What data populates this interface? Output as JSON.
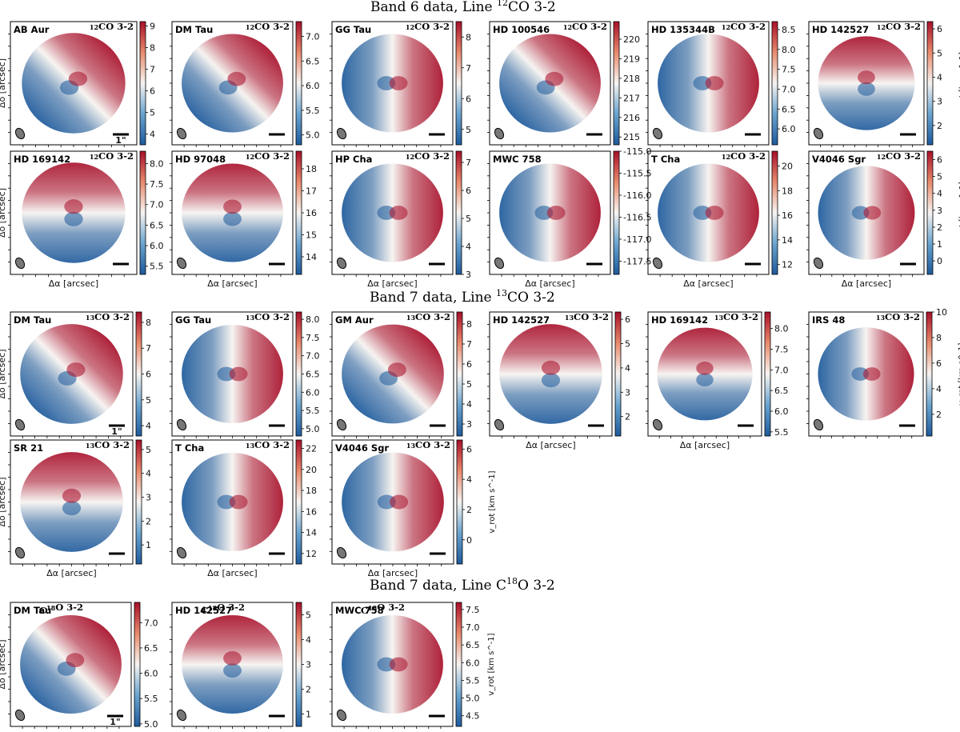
{
  "sections": [
    {
      "id": "s1",
      "title_main": "Band 6 data, Line ",
      "title_sup": "12",
      "title_tail": "CO 3-2"
    },
    {
      "id": "s2",
      "title_main": "Band 7 data, Line ",
      "title_sup": "13",
      "title_tail": "CO 3-2"
    },
    {
      "id": "s3",
      "title_main": "Band 7 data, Line C",
      "title_sup": "18",
      "title_tail": "O 3-2"
    }
  ],
  "axis_labels": {
    "x": "Δα [arcsec]",
    "y": "Δδ [arcsec]",
    "cbar": "v_rot [km s^-1]"
  },
  "colors": {
    "blue": "#1d5a9c",
    "white": "#f7f4f1",
    "red": "#a8102a"
  },
  "chart_data": [
    {
      "type": "heatmap",
      "section": "s1",
      "source": "AB Aur",
      "iso": "12",
      "mol": "CO 3-2",
      "ticks": [
        "9",
        "8",
        "7",
        "6",
        "5",
        "4"
      ],
      "range": [
        3.5,
        9.2
      ],
      "beam_label": "1\"",
      "show_xlabel": false,
      "show_ylabel": true,
      "show_cbar_label": false,
      "orient": "diag"
    },
    {
      "type": "heatmap",
      "section": "s1",
      "source": "DM Tau",
      "iso": "12",
      "mol": "CO 3-2",
      "ticks": [
        "7.0",
        "6.5",
        "6.0",
        "5.5",
        "5.0"
      ],
      "range": [
        4.8,
        7.3
      ],
      "show_xlabel": false,
      "show_ylabel": false,
      "show_cbar_label": false,
      "orient": "diag"
    },
    {
      "type": "heatmap",
      "section": "s1",
      "source": "GG Tau",
      "iso": "12",
      "mol": "CO 3-2",
      "ticks": [
        "8",
        "7",
        "6",
        "5"
      ],
      "range": [
        4.5,
        8.5
      ],
      "show_xlabel": false,
      "show_ylabel": false,
      "show_cbar_label": false,
      "orient": "lr"
    },
    {
      "type": "heatmap",
      "section": "s1",
      "source": "HD 100546",
      "iso": "12",
      "mol": "CO 3-2",
      "ticks": [
        "220",
        "219",
        "218",
        "217",
        "216",
        "215"
      ],
      "range": [
        214.6,
        220.9
      ],
      "show_xlabel": false,
      "show_ylabel": false,
      "show_cbar_label": false,
      "orient": "diag"
    },
    {
      "type": "heatmap",
      "section": "s1",
      "source": "HD 135344B",
      "iso": "12",
      "mol": "CO 3-2",
      "ticks": [
        "8.5",
        "8.0",
        "7.5",
        "7.0",
        "6.5",
        "6.0"
      ],
      "range": [
        5.6,
        8.7
      ],
      "show_xlabel": false,
      "show_ylabel": false,
      "show_cbar_label": false,
      "orient": "lr"
    },
    {
      "type": "heatmap",
      "section": "s1",
      "source": "HD 142527",
      "iso": "12",
      "mol": "CO 3-2",
      "ticks": [
        "6",
        "5",
        "4",
        "3",
        "2"
      ],
      "range": [
        1.2,
        6.3
      ],
      "show_xlabel": false,
      "show_ylabel": false,
      "show_cbar_label": true,
      "orient": "tb"
    },
    {
      "type": "heatmap",
      "section": "s1",
      "source": "HD 169142",
      "iso": "12",
      "mol": "CO 3-2",
      "ticks": [
        "8.0",
        "7.5",
        "7.0",
        "6.5",
        "6.0",
        "5.5"
      ],
      "range": [
        5.3,
        8.3
      ],
      "show_xlabel": true,
      "show_ylabel": true,
      "show_cbar_label": false,
      "orient": "tb"
    },
    {
      "type": "heatmap",
      "section": "s1",
      "source": "HD 97048",
      "iso": "12",
      "mol": "CO 3-2",
      "ticks": [
        "18",
        "17",
        "16",
        "15",
        "14"
      ],
      "range": [
        13.2,
        18.8
      ],
      "show_xlabel": true,
      "show_ylabel": false,
      "show_cbar_label": false,
      "orient": "tb"
    },
    {
      "type": "heatmap",
      "section": "s1",
      "source": "HP Cha",
      "iso": "12",
      "mol": "CO 3-2",
      "ticks": [
        "7",
        "6",
        "5",
        "4",
        "3"
      ],
      "range": [
        3.0,
        7.4
      ],
      "show_xlabel": true,
      "show_ylabel": false,
      "show_cbar_label": false,
      "orient": "lr"
    },
    {
      "type": "heatmap",
      "section": "s1",
      "source": "MWC 758",
      "iso": "",
      "mol": "",
      "ticks": [
        "-115.0",
        "-115.5",
        "-116.0",
        "-116.5",
        "-117.0",
        "-117.5"
      ],
      "range": [
        -117.8,
        -115.0
      ],
      "show_xlabel": true,
      "show_ylabel": false,
      "show_cbar_label": false,
      "orient": "lr"
    },
    {
      "type": "heatmap",
      "section": "s1",
      "source": "T Cha",
      "iso": "12",
      "mol": "CO 3-2",
      "ticks": [
        "20",
        "18",
        "16",
        "14",
        "12"
      ],
      "range": [
        11.2,
        21.2
      ],
      "show_xlabel": true,
      "show_ylabel": false,
      "show_cbar_label": false,
      "orient": "lr"
    },
    {
      "type": "heatmap",
      "section": "s1",
      "source": "V4046 Sgr",
      "iso": "12",
      "mol": "CO 3-2",
      "ticks": [
        "6",
        "5",
        "4",
        "3",
        "2",
        "1",
        "0"
      ],
      "range": [
        -0.8,
        6.5
      ],
      "show_xlabel": true,
      "show_ylabel": false,
      "show_cbar_label": true,
      "orient": "lr"
    },
    {
      "type": "heatmap",
      "section": "s2",
      "source": "DM Tau",
      "iso": "13",
      "mol": "CO 3-2",
      "ticks": [
        "8",
        "7",
        "6",
        "5",
        "4"
      ],
      "range": [
        3.6,
        8.4
      ],
      "beam_label": "1\"",
      "show_xlabel": false,
      "show_ylabel": true,
      "show_cbar_label": false,
      "orient": "diag"
    },
    {
      "type": "heatmap",
      "section": "s2",
      "source": "GG Tau",
      "iso": "13",
      "mol": "CO 3-2",
      "ticks": [
        "8.0",
        "7.5",
        "7.0",
        "6.5",
        "6.0",
        "5.5",
        "5.0"
      ],
      "range": [
        4.8,
        8.2
      ],
      "show_xlabel": false,
      "show_ylabel": false,
      "show_cbar_label": false,
      "orient": "lr"
    },
    {
      "type": "heatmap",
      "section": "s2",
      "source": "GM Aur",
      "iso": "13",
      "mol": "CO 3-2",
      "ticks": [
        "8",
        "7",
        "6",
        "5",
        "4",
        "3"
      ],
      "range": [
        2.4,
        8.6
      ],
      "show_xlabel": false,
      "show_ylabel": false,
      "show_cbar_label": false,
      "orient": "diag"
    },
    {
      "type": "heatmap",
      "section": "s2",
      "source": "HD 142527",
      "iso": "13",
      "mol": "CO 3-2",
      "ticks": [
        "6",
        "5",
        "4",
        "3",
        "2"
      ],
      "range": [
        1.2,
        6.3
      ],
      "show_xlabel": true,
      "show_ylabel": false,
      "show_cbar_label": false,
      "orient": "tb"
    },
    {
      "type": "heatmap",
      "section": "s2",
      "source": "HD 169142",
      "iso": "13",
      "mol": "CO 3-2",
      "ticks": [
        "8.0",
        "7.5",
        "7.0",
        "6.5",
        "6.0",
        "5.5"
      ],
      "range": [
        5.4,
        8.4
      ],
      "show_xlabel": true,
      "show_ylabel": false,
      "show_cbar_label": false,
      "orient": "tb"
    },
    {
      "type": "heatmap",
      "section": "s2",
      "source": "IRS 48",
      "iso": "13",
      "mol": "CO 3-2",
      "ticks": [
        "10",
        "8",
        "6",
        "4",
        "2"
      ],
      "range": [
        0.3,
        10.0
      ],
      "show_xlabel": false,
      "show_ylabel": false,
      "show_cbar_label": true,
      "orient": "lr"
    },
    {
      "type": "heatmap",
      "section": "s2",
      "source": "SR 21",
      "iso": "13",
      "mol": "CO 3-2",
      "ticks": [
        "5",
        "4",
        "3",
        "2",
        "1"
      ],
      "range": [
        0.2,
        5.4
      ],
      "show_xlabel": true,
      "show_ylabel": true,
      "show_cbar_label": false,
      "orient": "tb"
    },
    {
      "type": "heatmap",
      "section": "s2",
      "source": "T Cha",
      "iso": "13",
      "mol": "CO 3-2",
      "ticks": [
        "22",
        "20",
        "18",
        "16",
        "14",
        "12"
      ],
      "range": [
        11.0,
        22.8
      ],
      "show_xlabel": true,
      "show_ylabel": false,
      "show_cbar_label": false,
      "orient": "lr"
    },
    {
      "type": "heatmap",
      "section": "s2",
      "source": "V4046 Sgr",
      "iso": "13",
      "mol": "CO 3-2",
      "ticks": [
        "6",
        "4",
        "2",
        "0"
      ],
      "range": [
        -1.6,
        6.6
      ],
      "show_xlabel": true,
      "show_ylabel": false,
      "show_cbar_label": true,
      "orient": "lr"
    },
    {
      "type": "heatmap",
      "section": "s3",
      "source": "DM Tau",
      "iso": "18",
      "mol": "O 3-2",
      "ticks": [
        "7.0",
        "6.5",
        "6.0",
        "5.5",
        "5.0"
      ],
      "range": [
        4.95,
        7.4
      ],
      "beam_label": "1\"",
      "show_xlabel": true,
      "show_ylabel": true,
      "show_cbar_label": false,
      "orient": "diag"
    },
    {
      "type": "heatmap",
      "section": "s3",
      "source": "HD 142527",
      "iso": "18",
      "mol": "O 3-2",
      "ticks": [
        "5",
        "4",
        "3",
        "2",
        "1"
      ],
      "range": [
        0.5,
        5.5
      ],
      "show_xlabel": true,
      "show_ylabel": false,
      "show_cbar_label": false,
      "orient": "tb"
    },
    {
      "type": "heatmap",
      "section": "s3",
      "source": "MWC 758",
      "iso": "18",
      "mol": "O 3-2",
      "ticks": [
        "7.5",
        "7.0",
        "6.5",
        "6.0",
        "5.5",
        "5.0",
        "4.5"
      ],
      "range": [
        4.2,
        7.7
      ],
      "show_xlabel": true,
      "show_ylabel": false,
      "show_cbar_label": true,
      "orient": "lr"
    }
  ]
}
